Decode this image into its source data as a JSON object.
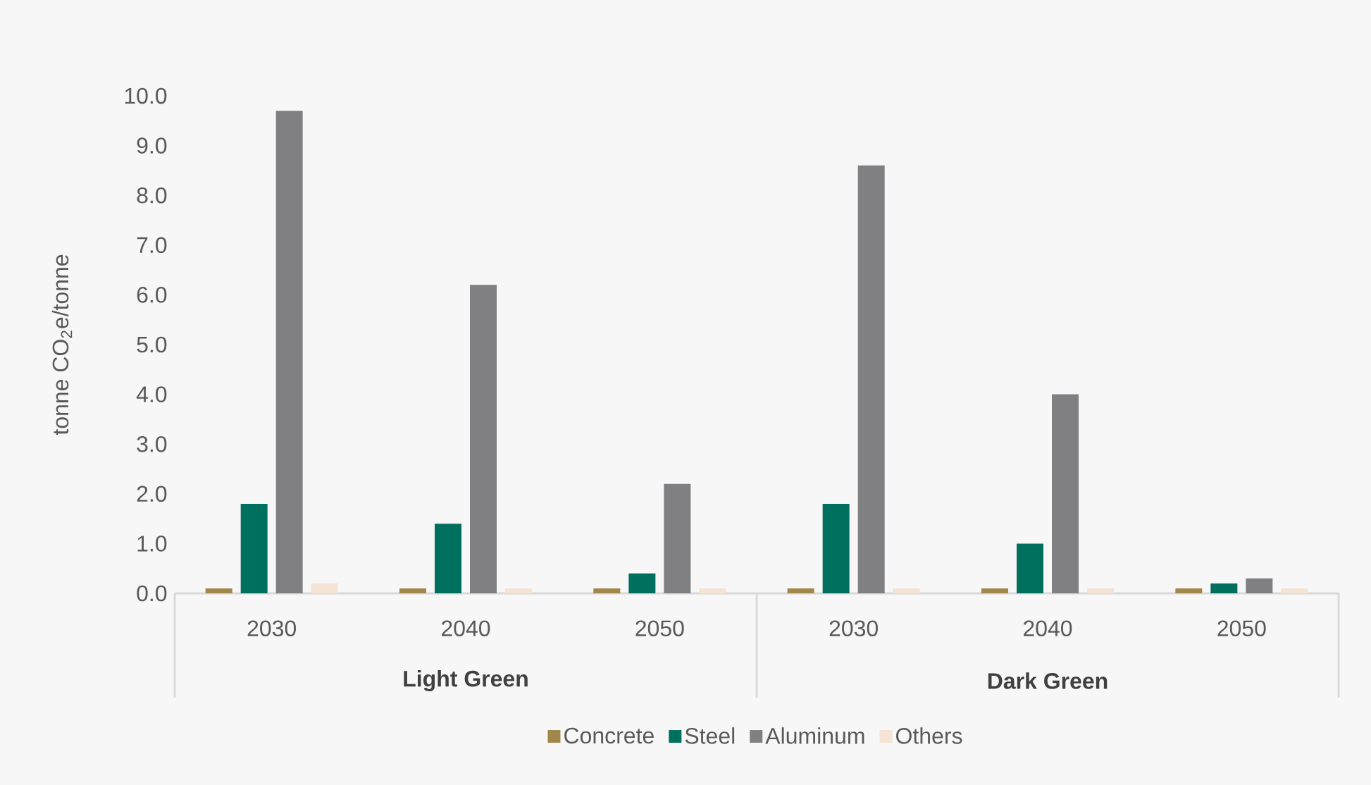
{
  "chart_data": {
    "type": "bar",
    "ylabel": "tonne CO$_{2}$e/tonne",
    "categories": [
      "2030",
      "2040",
      "2050",
      "2030",
      "2040",
      "2050"
    ],
    "annotations": [
      "Light Green",
      "Dark Green"
    ],
    "series": [
      {
        "name": "Concrete",
        "color": "#a1884a",
        "values": [
          0.1,
          0.1,
          0.1,
          0.1,
          0.1,
          0.1
        ]
      },
      {
        "name": "Steel",
        "color": "#00705e",
        "values": [
          1.8,
          1.4,
          0.4,
          1.8,
          1.0,
          0.2
        ]
      },
      {
        "name": "Aluminum",
        "color": "#808083",
        "values": [
          9.7,
          6.2,
          2.2,
          8.6,
          4.0,
          0.3
        ]
      },
      {
        "name": "Others",
        "color": "#f5e3d3",
        "values": [
          0.2,
          0.1,
          0.1,
          0.1,
          0.1,
          0.1
        ]
      }
    ],
    "ylim": [
      0,
      10
    ],
    "yticks": [
      {
        "value": 0,
        "label": "0.0"
      },
      {
        "value": 1,
        "label": "1.0"
      },
      {
        "value": 2,
        "label": "2.0"
      },
      {
        "value": 3,
        "label": "3.0"
      },
      {
        "value": 4,
        "label": "4.0"
      },
      {
        "value": 5,
        "label": "5.0"
      },
      {
        "value": 6,
        "label": "6.0"
      },
      {
        "value": 7,
        "label": "7.0"
      },
      {
        "value": 8,
        "label": "8.0"
      },
      {
        "value": 9,
        "label": "9.0"
      },
      {
        "value": 10,
        "label": "10.0"
      }
    ],
    "grid": false,
    "legend": "bottom"
  }
}
